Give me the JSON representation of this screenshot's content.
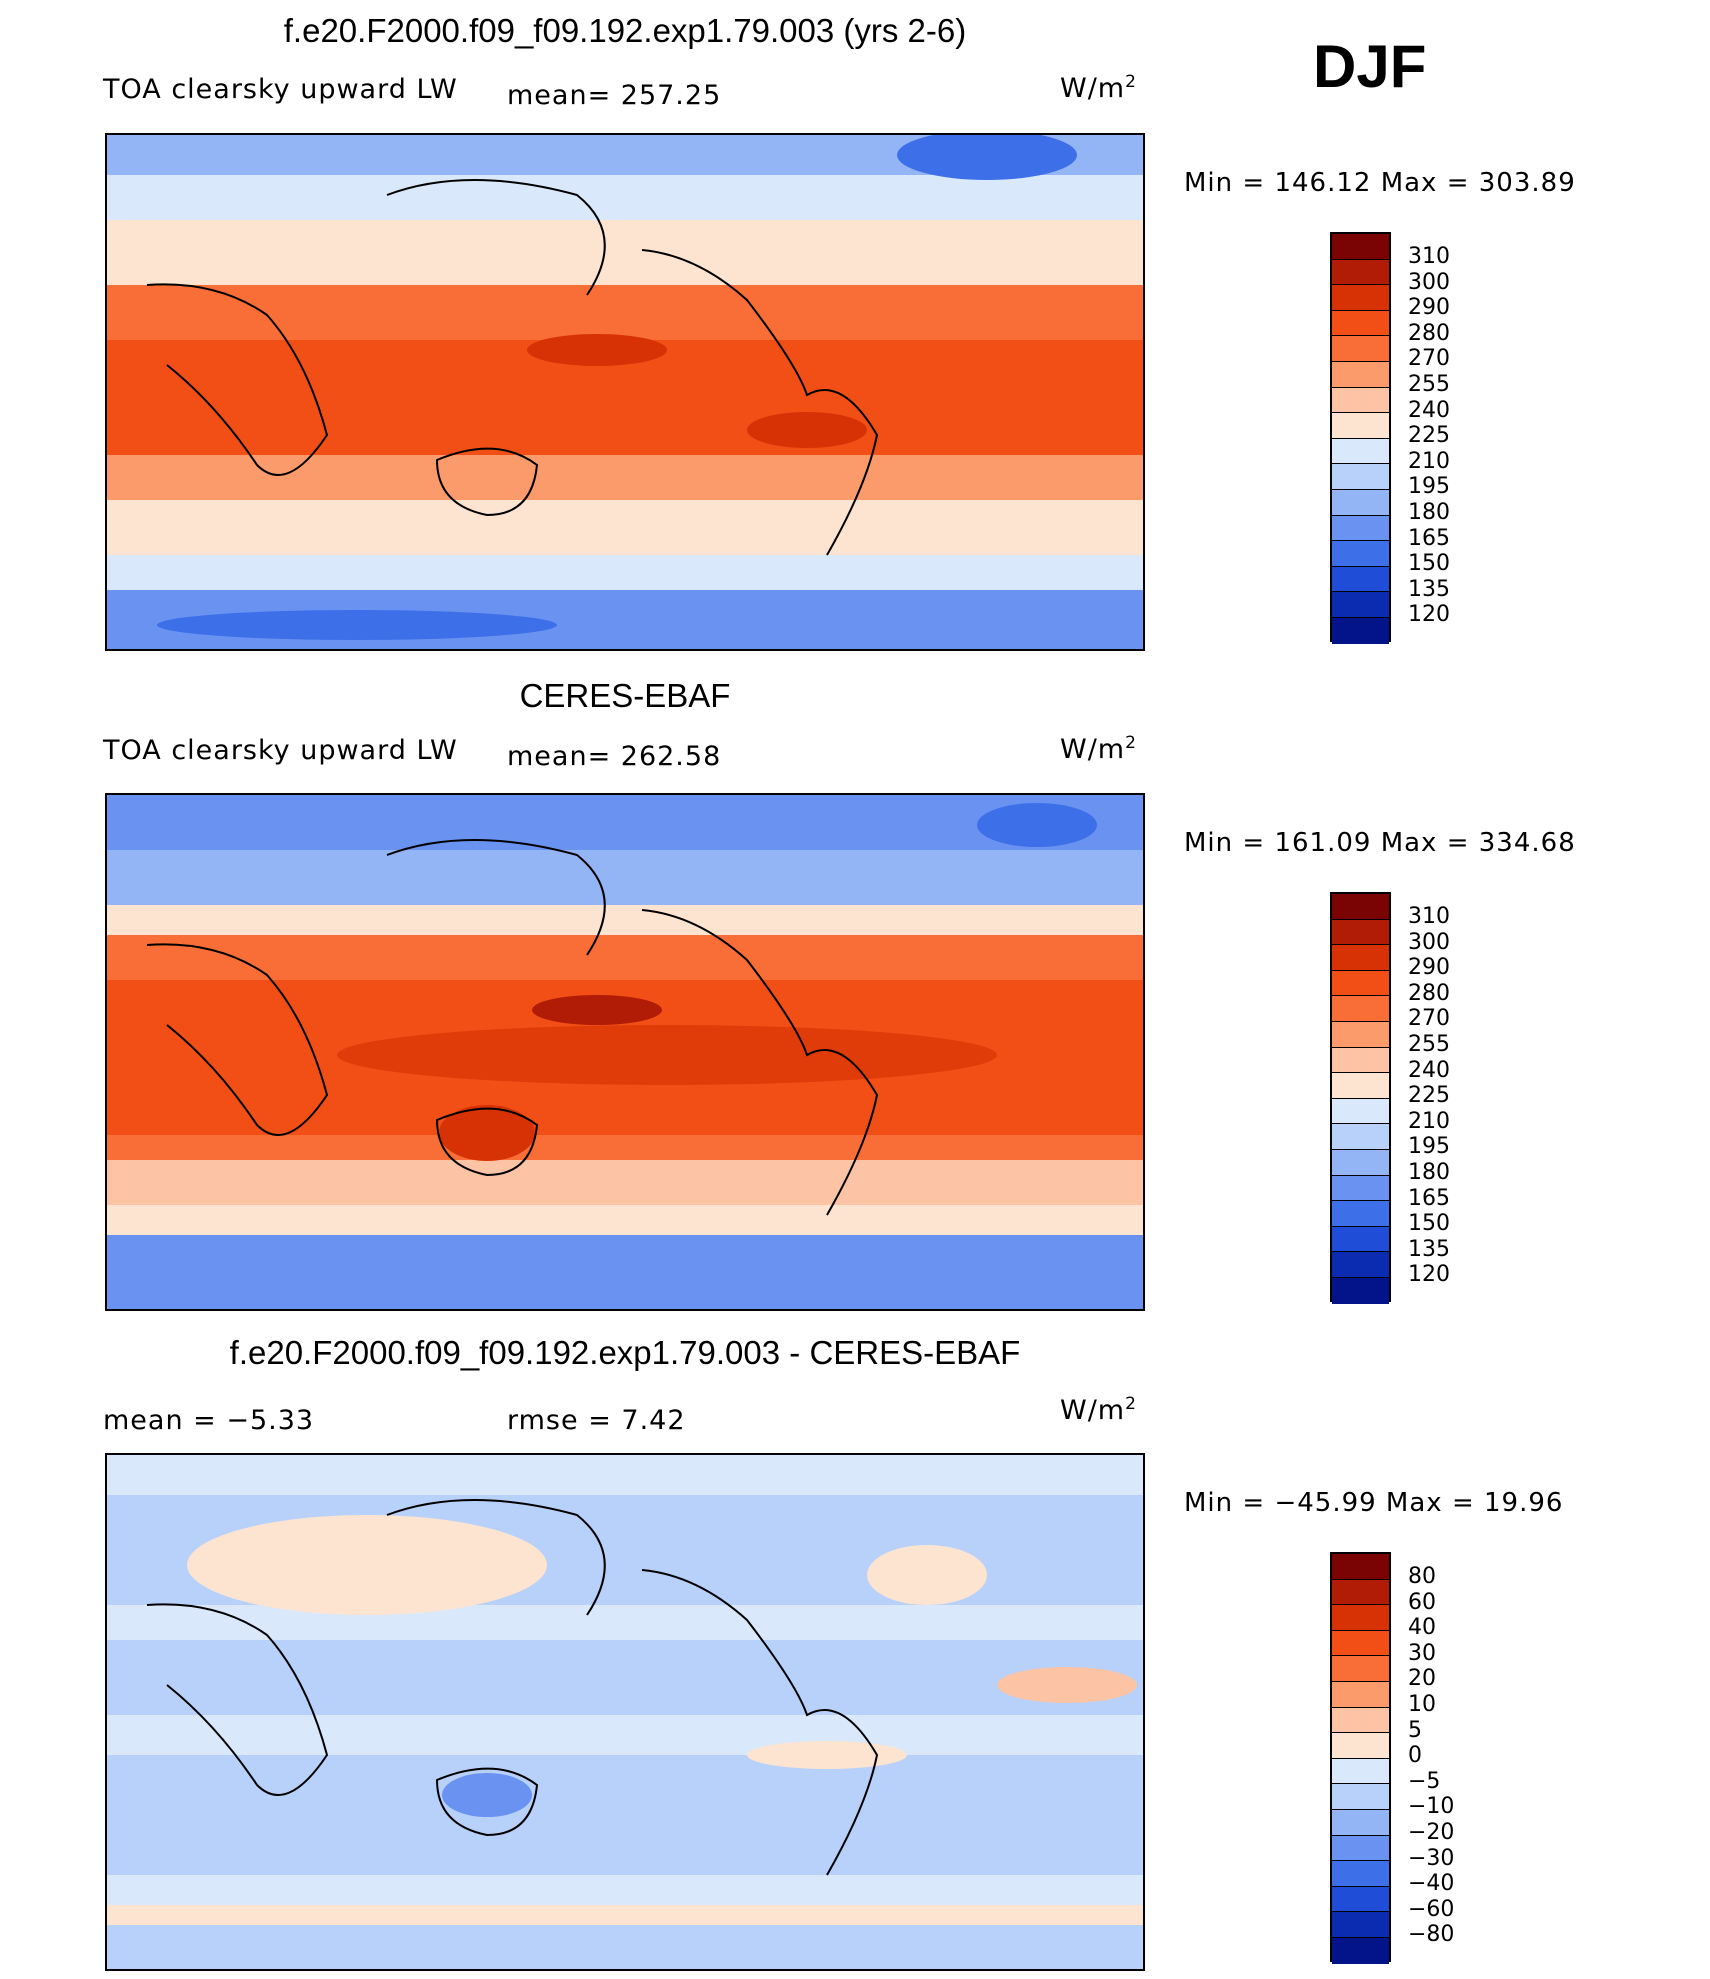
{
  "season": "DJF",
  "panels": [
    {
      "title": "f.e20.F2000.f09_f09.192.exp1.79.003 (yrs 2-6)",
      "left_text": "TOA clearsky upward LW",
      "middle_text": "mean= 257.25",
      "units_base": "W/m",
      "units_exp": "2",
      "minmax": "Min  =  146.12  Max  =  303.89",
      "legend_labels": [
        "310",
        "300",
        "290",
        "280",
        "270",
        "255",
        "240",
        "225",
        "210",
        "195",
        "180",
        "165",
        "150",
        "135",
        "120"
      ]
    },
    {
      "title": "CERES-EBAF",
      "left_text": "TOA clearsky upward LW",
      "middle_text": "mean= 262.58",
      "units_base": "W/m",
      "units_exp": "2",
      "minmax": "Min  =  161.09  Max  =  334.68",
      "legend_labels": [
        "310",
        "300",
        "290",
        "280",
        "270",
        "255",
        "240",
        "225",
        "210",
        "195",
        "180",
        "165",
        "150",
        "135",
        "120"
      ]
    },
    {
      "title": "f.e20.F2000.f09_f09.192.exp1.79.003 - CERES-EBAF",
      "left_text": "mean  =    −5.33",
      "middle_text": "rmse  =      7.42",
      "units_base": "W/m",
      "units_exp": "2",
      "minmax": "Min  =  −45.99  Max  =    19.96",
      "legend_labels": [
        "80",
        "60",
        "40",
        "30",
        "20",
        "10",
        "5",
        "0",
        "−5",
        "−10",
        "−20",
        "−30",
        "−40",
        "−60",
        "−80"
      ]
    }
  ],
  "colors": {
    "scale": [
      "#7a0403",
      "#b01c05",
      "#d73205",
      "#f14f16",
      "#f96e37",
      "#fb9a6a",
      "#fcc3a4",
      "#fde4d0",
      "#d9e8fb",
      "#b8d1fa",
      "#93b4f5",
      "#6a93f1",
      "#3d6fe9",
      "#1f4dd8",
      "#0b2cb0",
      "#03148a"
    ],
    "diff_scale": [
      "#7a0403",
      "#b01c05",
      "#d73205",
      "#f14f16",
      "#f96e37",
      "#fb9a6a",
      "#fcc3a4",
      "#fde4d0",
      "#d9e8fb",
      "#b8d1fa",
      "#93b4f5",
      "#6a93f1",
      "#3d6fe9",
      "#1f4dd8",
      "#0b2cb0",
      "#03148a"
    ]
  }
}
